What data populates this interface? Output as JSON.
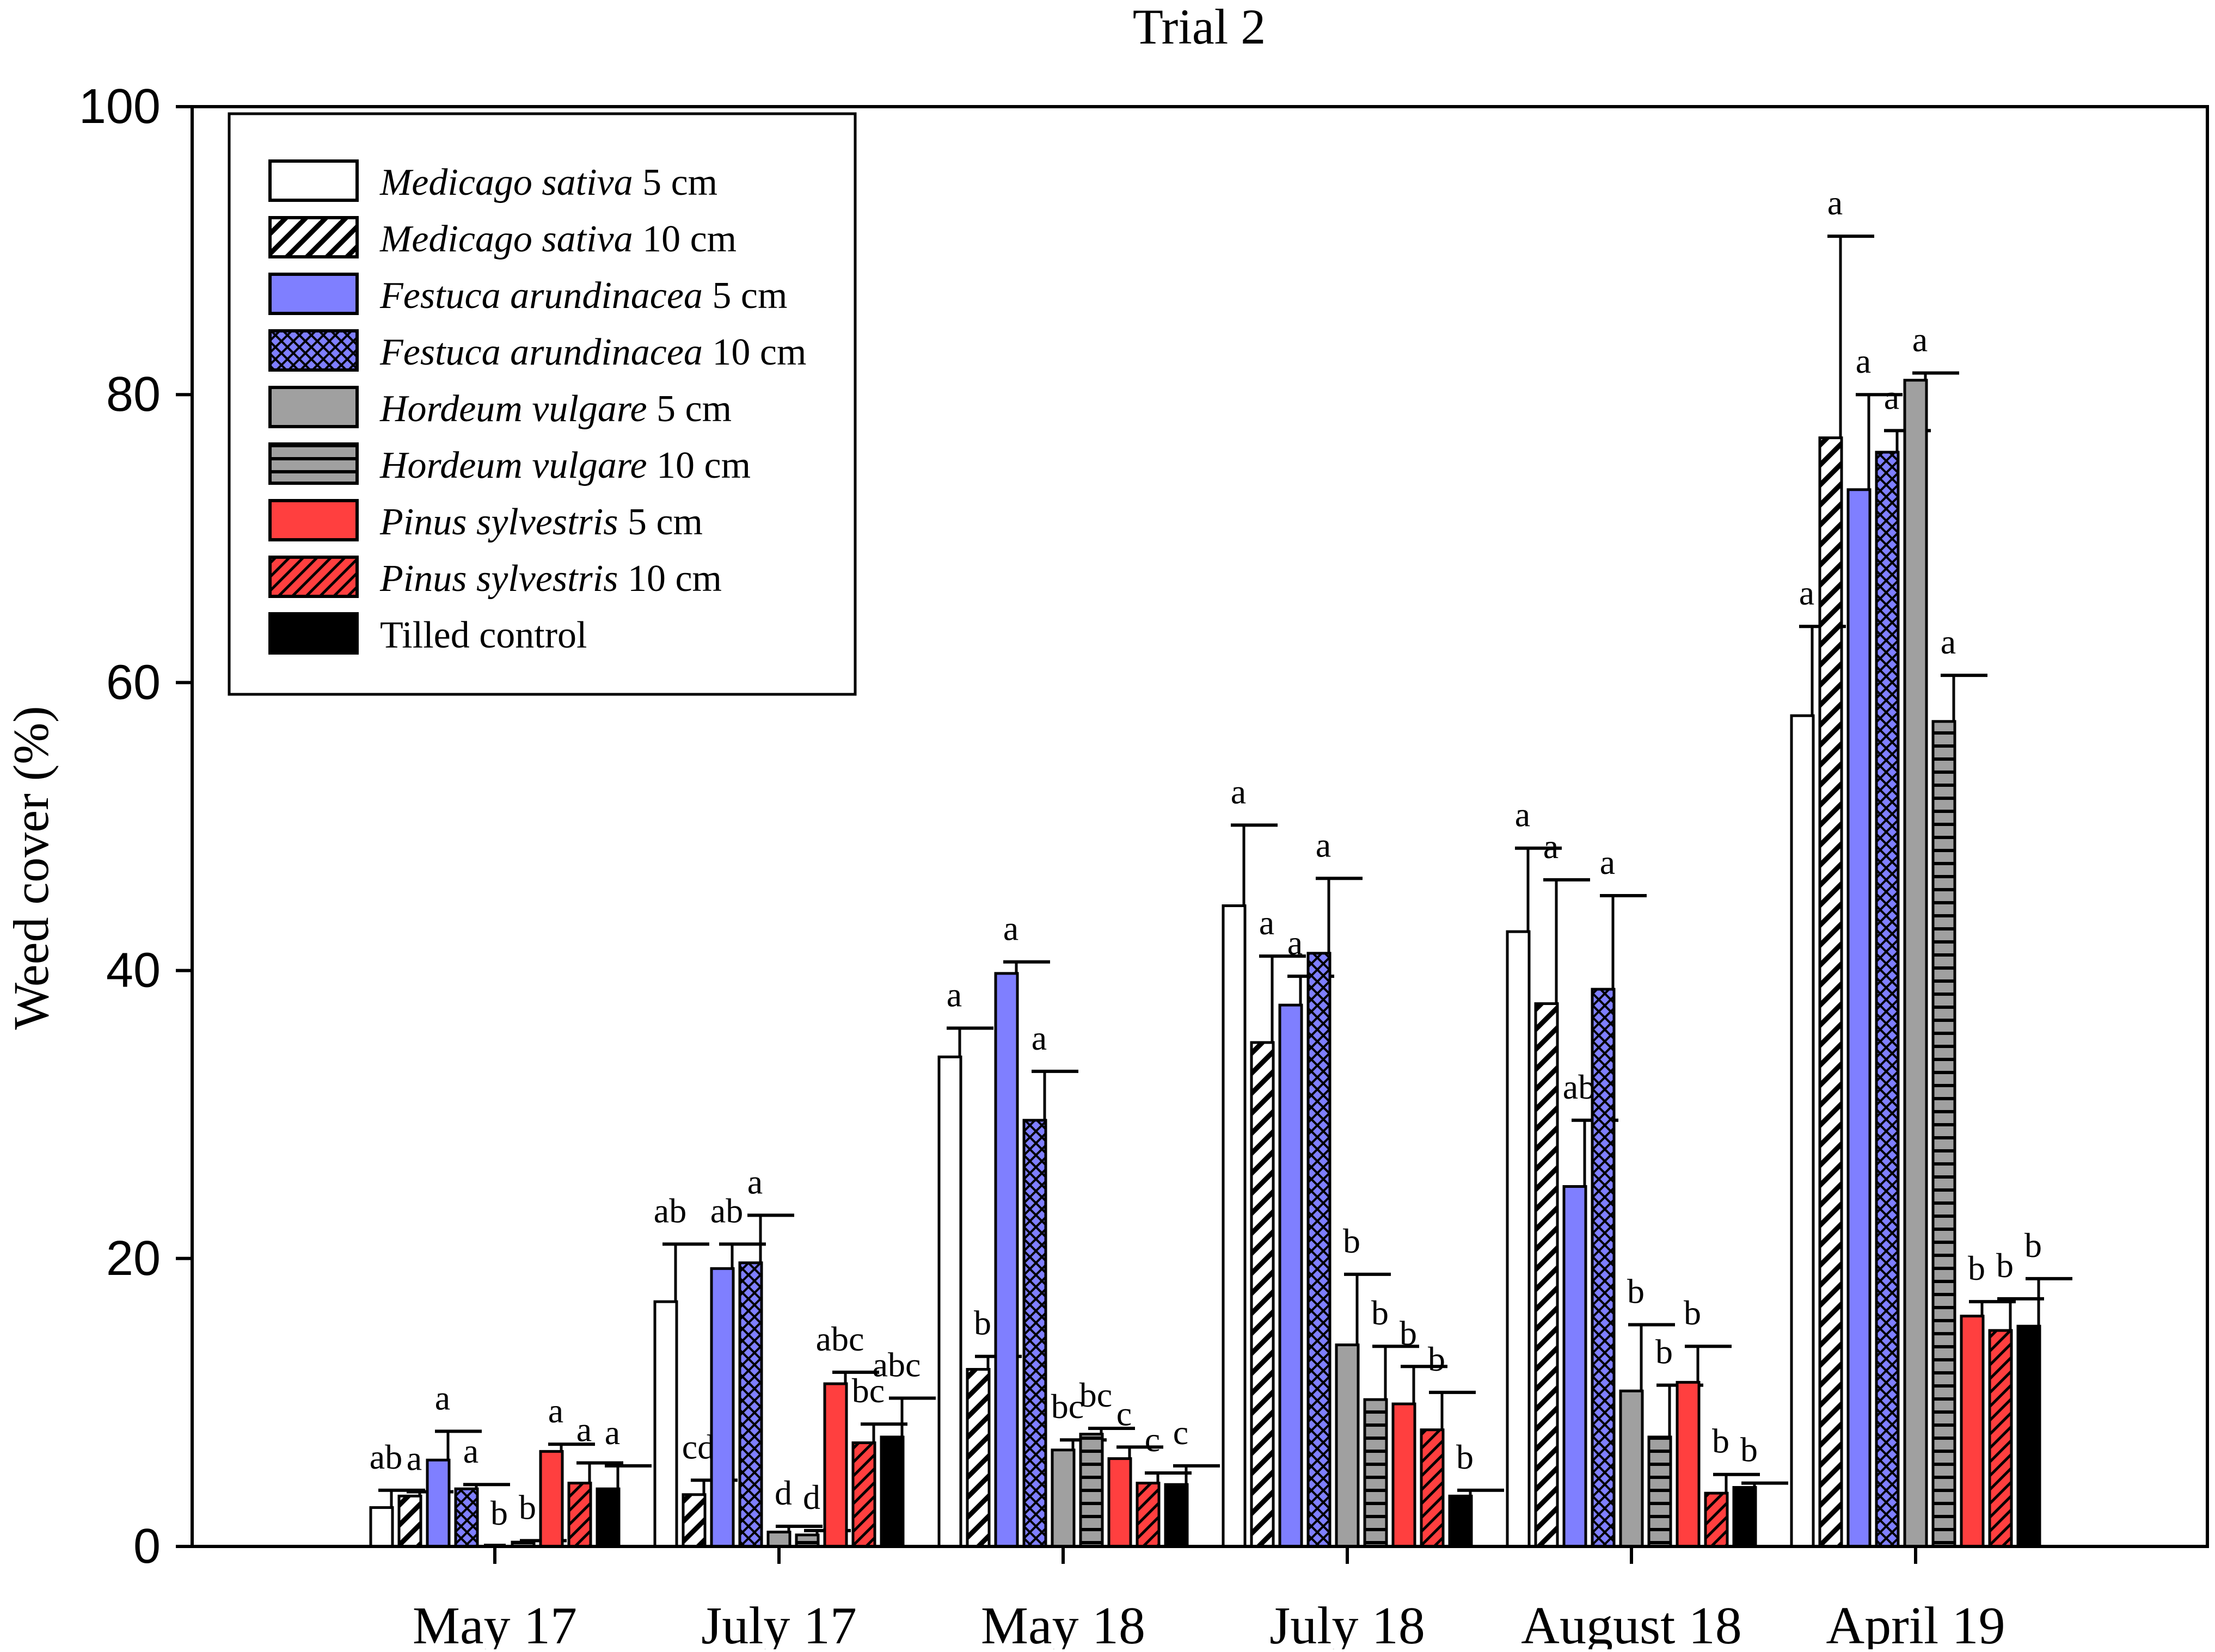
{
  "chart_data": {
    "type": "bar",
    "title": "Trial 2",
    "xlabel": "",
    "ylabel": "Weed cover (%)",
    "ylim": [
      0,
      100
    ],
    "yticks": [
      0,
      20,
      40,
      60,
      80,
      100
    ],
    "grid": false,
    "legend_position": "top-left",
    "categories": [
      "May 17",
      "July 17",
      "May 18",
      "July 18",
      "August 18",
      "April 19"
    ],
    "series": [
      {
        "name": "Medicago sativa 5 cm",
        "italic": "Medicago sativa",
        "suffix": " 5 cm",
        "pattern": "white",
        "values": [
          2.7,
          17.0,
          34.0,
          44.5,
          42.7,
          57.7
        ],
        "errors": [
          1.2,
          4.0,
          2.0,
          5.6,
          5.8,
          6.2
        ],
        "letters": [
          "ab",
          "ab",
          "a",
          "a",
          "a",
          "a"
        ]
      },
      {
        "name": "Medicago sativa 10 cm",
        "italic": "Medicago sativa",
        "suffix": " 10 cm",
        "pattern": "diag-white",
        "values": [
          3.5,
          3.6,
          12.3,
          35.0,
          37.7,
          77.0
        ],
        "errors": [
          0.3,
          1.0,
          0.9,
          6.0,
          8.6,
          14.0
        ],
        "letters": [
          "a",
          "cd",
          "b",
          "a",
          "a",
          "a"
        ]
      },
      {
        "name": "Festuca arundinacea 5 cm",
        "italic": "Festuca arundinacea",
        "suffix": " 5 cm",
        "pattern": "blue",
        "values": [
          6.0,
          19.3,
          39.8,
          37.6,
          25.0,
          73.4
        ],
        "errors": [
          2.0,
          1.7,
          0.8,
          2.0,
          4.6,
          6.6
        ],
        "letters": [
          "a",
          "ab",
          "a",
          "a",
          "ab",
          "a"
        ]
      },
      {
        "name": "Festuca arundinacea 10 cm",
        "italic": "Festuca arundinacea",
        "suffix": " 10 cm",
        "pattern": "cross-blue",
        "values": [
          4.0,
          19.7,
          29.6,
          41.2,
          38.7,
          76.0
        ],
        "errors": [
          0.3,
          3.3,
          3.4,
          5.2,
          6.5,
          1.5
        ],
        "letters": [
          "a",
          "a",
          "a",
          "a",
          "a",
          "a"
        ]
      },
      {
        "name": "Hordeum vulgare 5 cm",
        "italic": "Hordeum vulgare",
        "suffix": " 5 cm",
        "pattern": "gray",
        "values": [
          0.0,
          1.0,
          6.7,
          14.0,
          10.8,
          81.0
        ],
        "errors": [
          0.0,
          0.4,
          0.7,
          4.9,
          4.6,
          0.5
        ],
        "letters": [
          "b",
          "d",
          "bc",
          "b",
          "b",
          "a"
        ]
      },
      {
        "name": "Hordeum vulgare 10 cm",
        "italic": "Hordeum vulgare",
        "suffix": " 10 cm",
        "pattern": "hlines-gray",
        "values": [
          0.3,
          0.8,
          7.8,
          10.2,
          7.6,
          57.3
        ],
        "errors": [
          0.1,
          0.3,
          0.4,
          3.7,
          3.6,
          3.2
        ],
        "letters": [
          "b",
          "d",
          "bc",
          "b",
          "b",
          "a"
        ]
      },
      {
        "name": "Pinus sylvestris 5 cm",
        "italic": "Pinus sylvestris",
        "suffix": " 5 cm",
        "pattern": "red",
        "values": [
          6.6,
          11.3,
          6.1,
          9.9,
          11.4,
          16.0
        ],
        "errors": [
          0.5,
          0.8,
          0.8,
          2.6,
          2.5,
          1.0
        ],
        "letters": [
          "a",
          "abc",
          "c",
          "b",
          "b",
          "b"
        ]
      },
      {
        "name": "Pinus sylvestris 10 cm",
        "italic": "Pinus sylvestris",
        "suffix": " 10 cm",
        "pattern": "diag-red",
        "values": [
          4.4,
          7.2,
          4.4,
          8.1,
          3.7,
          15.0
        ],
        "errors": [
          1.4,
          1.3,
          0.7,
          2.6,
          1.3,
          2.2
        ],
        "letters": [
          "a",
          "bc",
          "c",
          "b",
          "b",
          "b"
        ]
      },
      {
        "name": "Tilled control",
        "italic": "",
        "suffix": "Tilled control",
        "pattern": "black",
        "values": [
          4.0,
          7.6,
          4.3,
          3.5,
          4.1,
          15.3
        ],
        "errors": [
          1.6,
          2.7,
          1.3,
          0.4,
          0.3,
          3.3
        ],
        "letters": [
          "a",
          "abc",
          "c",
          "b",
          "b",
          "b"
        ]
      }
    ]
  }
}
